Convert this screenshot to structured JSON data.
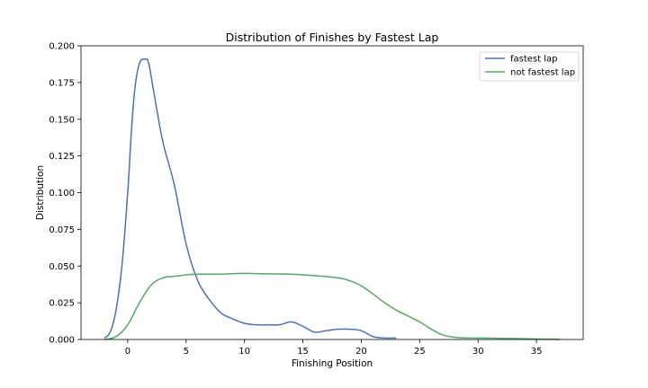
{
  "chart_data": {
    "type": "line",
    "title": "Distribution of Finishes by Fastest Lap",
    "xlabel": "Finishing Position",
    "ylabel": "Distribution",
    "xlim": [
      -4,
      39
    ],
    "ylim": [
      0,
      0.2
    ],
    "xticks": [
      "0",
      "5",
      "10",
      "15",
      "20",
      "25",
      "30",
      "35"
    ],
    "yticks": [
      "0.000",
      "0.025",
      "0.050",
      "0.075",
      "0.100",
      "0.125",
      "0.150",
      "0.175",
      "0.200"
    ],
    "grid": false,
    "legend_position": "top-right",
    "series": [
      {
        "name": "fastest lap",
        "color": "#4c72b0",
        "x": [
          -2.0,
          -1.5,
          -1.0,
          -0.5,
          0.0,
          0.3,
          0.6,
          1.0,
          1.5,
          1.8,
          2.2,
          3.0,
          4.0,
          5.0,
          6.0,
          7.0,
          8.0,
          9.0,
          10.0,
          11.0,
          12.0,
          13.0,
          14.0,
          15.0,
          16.0,
          17.0,
          18.0,
          19.0,
          20.0,
          21.0,
          22.0,
          23.0
        ],
        "y": [
          0.001,
          0.005,
          0.02,
          0.05,
          0.1,
          0.14,
          0.17,
          0.188,
          0.191,
          0.188,
          0.17,
          0.135,
          0.105,
          0.065,
          0.04,
          0.027,
          0.018,
          0.014,
          0.011,
          0.01,
          0.01,
          0.01,
          0.012,
          0.009,
          0.005,
          0.006,
          0.007,
          0.007,
          0.006,
          0.002,
          0.001,
          0.001
        ]
      },
      {
        "name": "not fastest lap",
        "color": "#55a868",
        "x": [
          -2.0,
          -1.0,
          0.0,
          1.0,
          2.0,
          3.0,
          4.0,
          5.0,
          6.0,
          7.0,
          8.0,
          10.0,
          12.0,
          14.0,
          16.0,
          18.0,
          19.0,
          20.0,
          21.0,
          22.0,
          23.0,
          24.0,
          25.0,
          26.0,
          27.0,
          28.0,
          29.0,
          30.0,
          32.0,
          34.0,
          36.0,
          37.0
        ],
        "y": [
          0.0,
          0.002,
          0.01,
          0.025,
          0.037,
          0.042,
          0.043,
          0.044,
          0.0445,
          0.0445,
          0.0445,
          0.045,
          0.0447,
          0.0445,
          0.0435,
          0.042,
          0.04,
          0.0365,
          0.031,
          0.025,
          0.02,
          0.016,
          0.012,
          0.007,
          0.003,
          0.0015,
          0.001,
          0.001,
          0.0008,
          0.0005,
          0.0002,
          0.0001
        ]
      }
    ]
  }
}
